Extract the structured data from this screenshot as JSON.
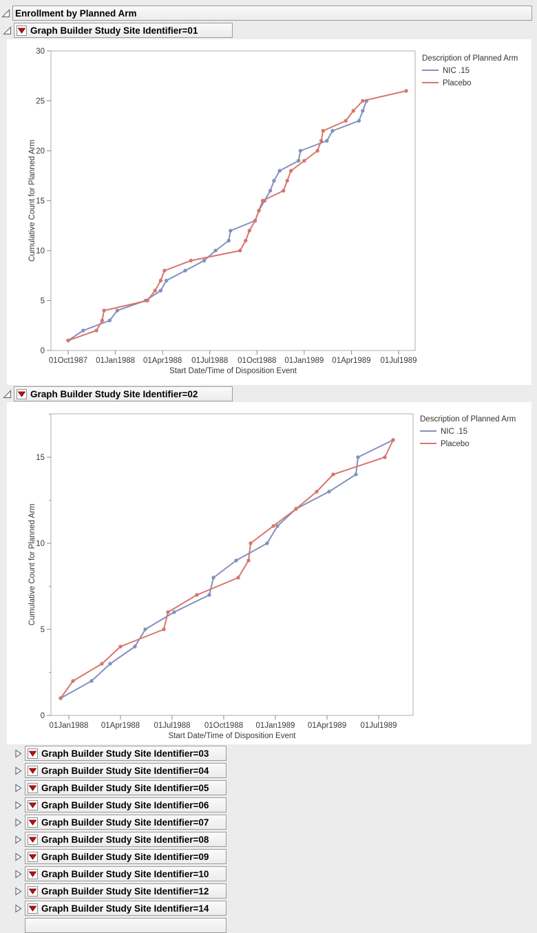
{
  "report": {
    "title": "Enrollment by Planned Arm"
  },
  "legend": {
    "title": "Description of Planned Arm",
    "entries": [
      {
        "label": "NIC .15",
        "color": "#8191BE"
      },
      {
        "label": "Placebo",
        "color": "#D7766C"
      }
    ]
  },
  "palette": {
    "nic15_line": "#8191BE",
    "placebo_line": "#D7766C",
    "plot_frame": "#ADADAD",
    "tick_text": "#383838",
    "header_border": "#9B9B9B",
    "red_triangle": "#C40E0E",
    "background": "#ECECEC"
  },
  "sections": [
    {
      "label": "Graph Builder Study Site Identifier=01",
      "state": "expanded"
    },
    {
      "label": "Graph Builder Study Site Identifier=02",
      "state": "expanded"
    },
    {
      "label": "Graph Builder Study Site Identifier=03",
      "state": "collapsed"
    },
    {
      "label": "Graph Builder Study Site Identifier=04",
      "state": "collapsed"
    },
    {
      "label": "Graph Builder Study Site Identifier=05",
      "state": "collapsed"
    },
    {
      "label": "Graph Builder Study Site Identifier=06",
      "state": "collapsed"
    },
    {
      "label": "Graph Builder Study Site Identifier=07",
      "state": "collapsed"
    },
    {
      "label": "Graph Builder Study Site Identifier=08",
      "state": "collapsed"
    },
    {
      "label": "Graph Builder Study Site Identifier=09",
      "state": "collapsed"
    },
    {
      "label": "Graph Builder Study Site Identifier=10",
      "state": "collapsed"
    },
    {
      "label": "Graph Builder Study Site Identifier=12",
      "state": "collapsed"
    },
    {
      "label": "Graph Builder Study Site Identifier=14",
      "state": "collapsed"
    }
  ],
  "partial_row_clipped_at_bottom": true,
  "chart_data": [
    {
      "type": "line",
      "section": "Graph Builder Study Site Identifier=01",
      "xlabel": "Start Date/Time of Disposition Event",
      "ylabel": "Cumulative Count for Planned Arm",
      "legend_title": "Description of Planned Arm",
      "x_tick_labels": [
        "01Oct1987",
        "01Jan1988",
        "01Apr1988",
        "01Jul1988",
        "01Oct1988",
        "01Jan1989",
        "01Apr1989",
        "01Jul1989"
      ],
      "x_tick_years": [
        1987.75,
        1988.0,
        1988.25,
        1988.5,
        1988.75,
        1989.0,
        1989.25,
        1989.5
      ],
      "y_ticks": [
        0,
        5,
        10,
        15,
        20,
        25,
        30
      ],
      "y_minor_ticks": [],
      "ylim": [
        0,
        30
      ],
      "xlim_years": [
        1987.66,
        1989.59
      ],
      "series": [
        {
          "name": "NIC .15",
          "color": "#8191BE",
          "x_years": [
            1987.75,
            1987.83,
            1987.97,
            1988.01,
            1988.16,
            1988.24,
            1988.27,
            1988.37,
            1988.47,
            1988.53,
            1988.6,
            1988.61,
            1988.74,
            1988.76,
            1988.79,
            1988.82,
            1988.84,
            1988.87,
            1988.97,
            1988.98,
            1989.12,
            1989.15,
            1989.29,
            1989.31,
            1989.33
          ],
          "y": [
            1,
            2,
            3,
            4,
            5,
            6,
            7,
            8,
            9,
            10,
            11,
            12,
            13,
            14,
            15,
            16,
            17,
            18,
            19,
            20,
            21,
            22,
            23,
            24,
            25
          ]
        },
        {
          "name": "Placebo",
          "color": "#D7766C",
          "x_years": [
            1987.75,
            1987.9,
            1987.93,
            1987.94,
            1988.17,
            1988.21,
            1988.24,
            1988.26,
            1988.4,
            1988.66,
            1988.69,
            1988.71,
            1988.74,
            1988.76,
            1988.78,
            1988.89,
            1988.91,
            1988.93,
            1989.0,
            1989.07,
            1989.09,
            1989.1,
            1989.22,
            1989.26,
            1989.31,
            1989.54
          ],
          "y": [
            1,
            2,
            3,
            4,
            5,
            6,
            7,
            8,
            9,
            10,
            11,
            12,
            13,
            14,
            15,
            16,
            17,
            18,
            19,
            20,
            21,
            22,
            23,
            24,
            25,
            26
          ]
        }
      ]
    },
    {
      "type": "line",
      "section": "Graph Builder Study Site Identifier=02",
      "xlabel": "Start Date/Time of Disposition Event",
      "ylabel": "Cumulative Count for Planned Arm",
      "legend_title": "Description of Planned Arm",
      "x_tick_labels": [
        "01Jan1988",
        "01Apr1988",
        "01Jul1988",
        "01Oct1988",
        "01Jan1989",
        "01Apr1989",
        "01Jul1989"
      ],
      "x_tick_years": [
        1988.0,
        1988.25,
        1988.5,
        1988.75,
        1989.0,
        1989.25,
        1989.5
      ],
      "y_ticks": [
        0,
        5,
        10,
        15
      ],
      "y_minor_ticks": [
        2.5,
        7.5,
        12.5,
        17.5
      ],
      "ylim": [
        0,
        17.5
      ],
      "xlim_years": [
        1987.91,
        1989.67
      ],
      "series": [
        {
          "name": "NIC .15",
          "color": "#8191BE",
          "x_years": [
            1987.96,
            1988.11,
            1988.2,
            1988.32,
            1988.37,
            1988.51,
            1988.68,
            1988.7,
            1988.81,
            1988.96,
            1989.01,
            1989.1,
            1989.26,
            1989.39,
            1989.4,
            1989.57
          ],
          "y": [
            1,
            2,
            3,
            4,
            5,
            6,
            7,
            8,
            9,
            10,
            11,
            12,
            13,
            14,
            15,
            16
          ]
        },
        {
          "name": "Placebo",
          "color": "#D7766C",
          "x_years": [
            1987.96,
            1988.02,
            1988.16,
            1988.25,
            1988.46,
            1988.48,
            1988.62,
            1988.82,
            1988.87,
            1988.88,
            1988.99,
            1989.1,
            1989.2,
            1989.28,
            1989.53,
            1989.57
          ],
          "y": [
            1,
            2,
            3,
            4,
            5,
            6,
            7,
            8,
            9,
            10,
            11,
            12,
            13,
            14,
            15,
            16
          ]
        }
      ]
    }
  ]
}
